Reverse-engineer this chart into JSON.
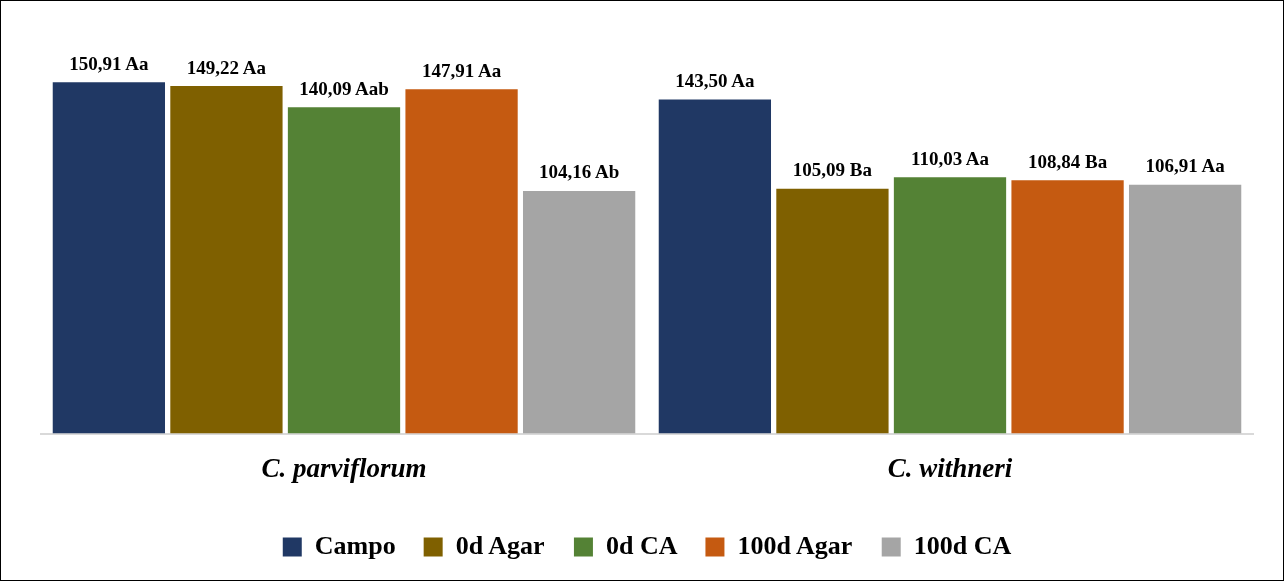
{
  "chart_data": {
    "type": "bar",
    "categories": [
      "C. parviflorum",
      "C. withneri"
    ],
    "series": [
      {
        "name": "Campo",
        "color": "#203864",
        "values": [
          150.91,
          143.5
        ],
        "value_labels": [
          "150,91 Aa",
          "143,50 Aa"
        ]
      },
      {
        "name": "0d Agar",
        "color": "#7f6000",
        "values": [
          149.22,
          105.09
        ],
        "value_labels": [
          "149,22 Aa",
          "105,09 Ba"
        ]
      },
      {
        "name": "0d CA",
        "color": "#548235",
        "values": [
          140.09,
          110.03
        ],
        "value_labels": [
          "140,09 Aab",
          "110,03 Aa"
        ]
      },
      {
        "name": "100d Agar",
        "color": "#c55a11",
        "values": [
          147.91,
          108.84
        ],
        "value_labels": [
          "147,91 Aa",
          "108,84 Ba"
        ]
      },
      {
        "name": "100d CA",
        "color": "#a5a5a5",
        "values": [
          104.16,
          106.91
        ],
        "value_labels": [
          "104,16 Ab",
          "106,91 Aa"
        ]
      }
    ],
    "legend": "bottom",
    "grid": false
  }
}
